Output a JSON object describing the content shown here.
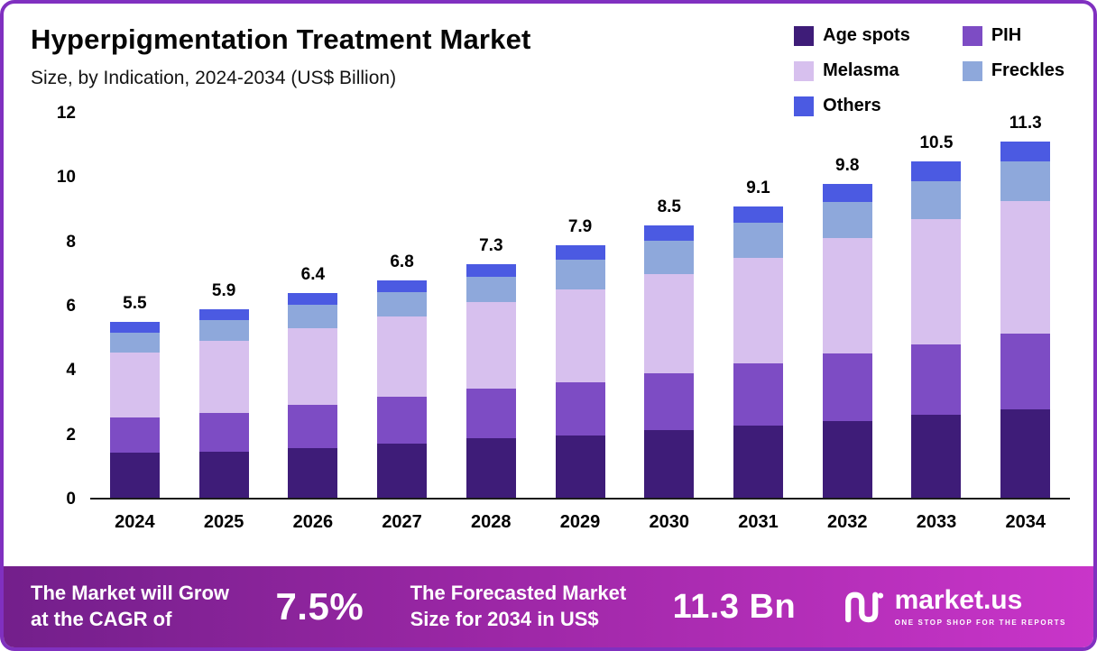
{
  "header": {
    "title": "Hyperpigmentation Treatment Market",
    "subtitle": "Size, by Indication, 2024-2034 (US$ Billion)"
  },
  "legend": {
    "items": [
      {
        "label": "Age spots",
        "color": "#3e1c78"
      },
      {
        "label": "PIH",
        "color": "#7d4cc4"
      },
      {
        "label": "Melasma",
        "color": "#d7c0ee"
      },
      {
        "label": "Freckles",
        "color": "#8ea8db"
      },
      {
        "label": "Others",
        "color": "#4b5ae2"
      }
    ]
  },
  "chart_data": {
    "type": "bar",
    "stacked": true,
    "title": "Hyperpigmentation Treatment Market Size, by Indication, 2024-2034 (US$ Billion)",
    "xlabel": "",
    "ylabel": "",
    "ylim": [
      0,
      12
    ],
    "yticks": [
      0,
      2,
      4,
      6,
      8,
      10,
      12
    ],
    "grid": false,
    "legend_position": "top-right",
    "categories": [
      "2024",
      "2025",
      "2026",
      "2027",
      "2028",
      "2029",
      "2030",
      "2031",
      "2032",
      "2033",
      "2034"
    ],
    "series": [
      {
        "name": "Age spots",
        "color": "#3e1c78",
        "values": [
          1.4,
          1.45,
          1.55,
          1.7,
          1.85,
          1.95,
          2.1,
          2.25,
          2.4,
          2.6,
          2.8
        ]
      },
      {
        "name": "PIH",
        "color": "#7d4cc4",
        "values": [
          1.1,
          1.2,
          1.35,
          1.45,
          1.55,
          1.65,
          1.8,
          1.95,
          2.1,
          2.2,
          2.4
        ]
      },
      {
        "name": "Melasma",
        "color": "#d7c0ee",
        "values": [
          2.05,
          2.25,
          2.4,
          2.5,
          2.7,
          2.9,
          3.1,
          3.3,
          3.6,
          3.9,
          4.2
        ]
      },
      {
        "name": "Freckles",
        "color": "#8ea8db",
        "values": [
          0.62,
          0.65,
          0.72,
          0.78,
          0.8,
          0.93,
          1.02,
          1.08,
          1.15,
          1.2,
          1.28
        ]
      },
      {
        "name": "Others",
        "color": "#4b5ae2",
        "values": [
          0.33,
          0.35,
          0.38,
          0.37,
          0.4,
          0.47,
          0.48,
          0.52,
          0.55,
          0.6,
          0.62
        ]
      }
    ],
    "totals": [
      5.5,
      5.9,
      6.4,
      6.8,
      7.3,
      7.9,
      8.5,
      9.1,
      9.8,
      10.5,
      11.3
    ]
  },
  "footer": {
    "cagr_label": "The Market will Grow\nat the CAGR of",
    "cagr_value": "7.5%",
    "forecast_label": "The Forecasted Market\nSize for 2034 in US$",
    "forecast_value": "11.3 Bn",
    "brand": "market.us",
    "brand_tagline": "ONE STOP SHOP FOR THE REPORTS"
  }
}
